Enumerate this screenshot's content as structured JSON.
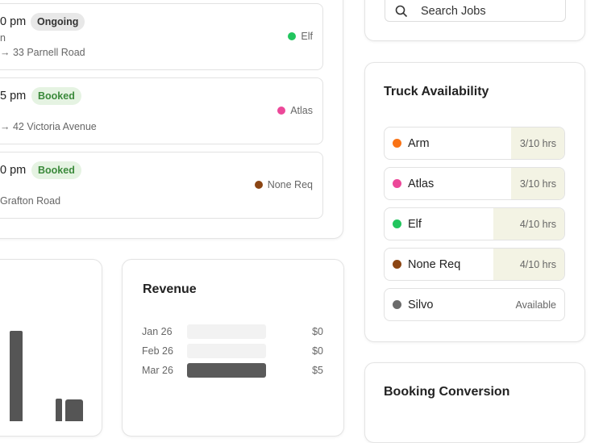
{
  "jobs": [
    {
      "time": "0 pm",
      "status": {
        "text": "Ongoing",
        "color": "gray"
      },
      "detail": "n",
      "address": "→ 33 Parnell Road",
      "truck": {
        "name": "Elf",
        "color": "#22c55e"
      }
    },
    {
      "time": "5 pm",
      "status": {
        "text": "Booked",
        "color": "green"
      },
      "address": "→ 42 Victoria Avenue",
      "truck": {
        "name": "Atlas",
        "color": "#ec4899"
      }
    },
    {
      "time": "0 pm",
      "status": {
        "text": "Booked",
        "color": "green"
      },
      "address": "Grafton Road",
      "truck": {
        "name": "None Req",
        "color": "#8b4513"
      }
    }
  ],
  "revenue": {
    "title": "Revenue",
    "categories": [
      "Jan 26",
      "Feb 26",
      "Mar 26"
    ],
    "values": [
      0,
      0,
      5
    ],
    "value_labels": [
      "$0",
      "$0",
      "$5"
    ],
    "color": "#5a5a5a"
  },
  "search": {
    "placeholder": "Search Jobs"
  },
  "truck_availability": {
    "title": "Truck Availability",
    "trucks": [
      {
        "name": "Arm",
        "color": "#f97316",
        "usage": {
          "value": 3,
          "label": "3/10 hrs"
        }
      },
      {
        "name": "Atlas",
        "color": "#ec4899",
        "usage": {
          "value": 3,
          "label": "3/10 hrs"
        }
      },
      {
        "name": "Elf",
        "color": "#22c55e",
        "usage": {
          "value": 4,
          "label": "4/10 hrs"
        }
      },
      {
        "name": "None Req",
        "color": "#8b4513",
        "usage": {
          "value": 4,
          "label": "4/10 hrs"
        }
      },
      {
        "name": "Silvo",
        "color": "#6b6b6b",
        "usage": "Available"
      }
    ]
  },
  "booking_conversion": {
    "title": "Booking Conversion"
  }
}
